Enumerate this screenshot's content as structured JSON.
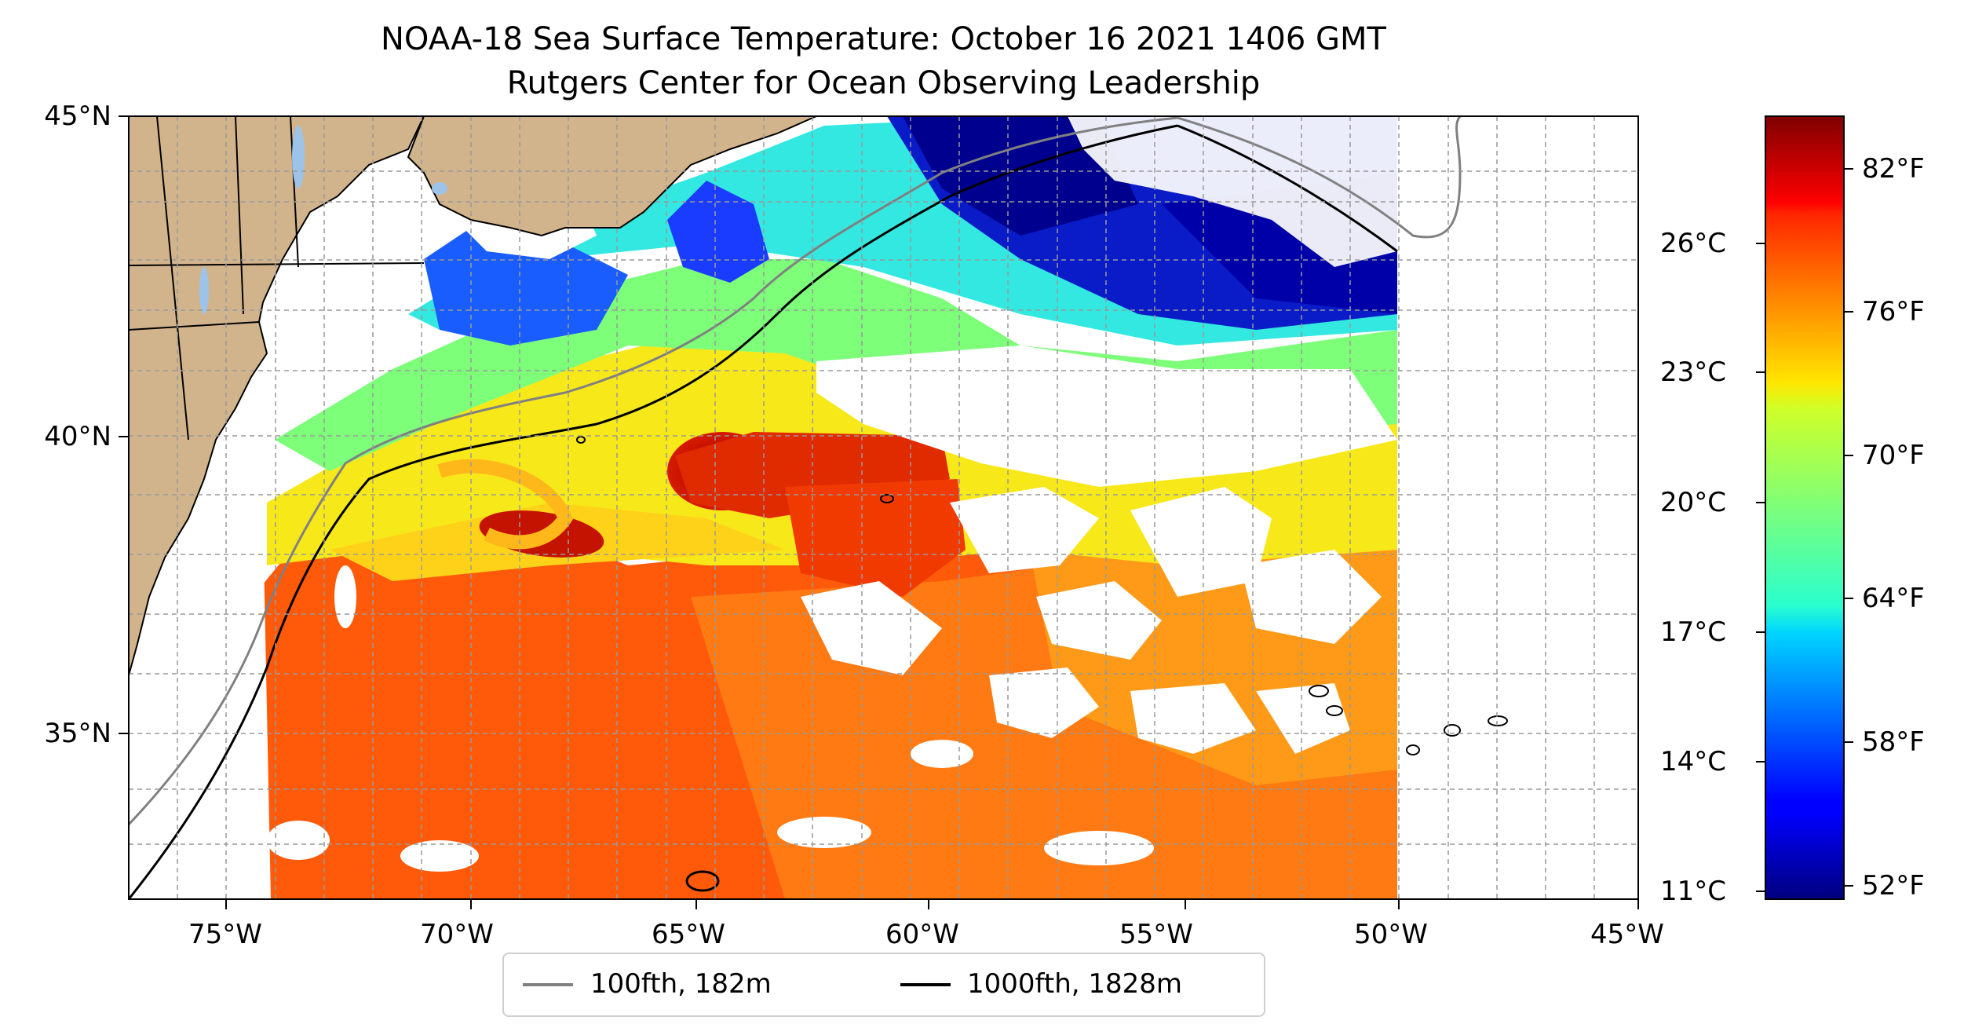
{
  "title": {
    "line1": "NOAA-18 Sea Surface Temperature: October 16 2021 1406 GMT",
    "line2": "Rutgers Center for Ocean Observing Leadership"
  },
  "map": {
    "lon_ticks": [
      "75°W",
      "70°W",
      "65°W",
      "60°W",
      "55°W",
      "50°W",
      "45°W"
    ],
    "lat_ticks": [
      "45°N",
      "40°N",
      "35°N"
    ],
    "extent": {
      "lon_min": -77,
      "lon_max": -45,
      "lat_min": 32.2,
      "lat_max": 45
    },
    "land_color": "#d2b48c",
    "lake_color": "#9ec3e8",
    "grid": "dashed"
  },
  "colorbar": {
    "celsius_labels": [
      "26°C",
      "23°C",
      "20°C",
      "17°C",
      "14°C",
      "11°C"
    ],
    "fahrenheit_labels": [
      "82°F",
      "76°F",
      "70°F",
      "64°F",
      "58°F",
      "52°F"
    ],
    "colormap": "jet"
  },
  "legend": {
    "items": [
      {
        "label": "100fth, 182m",
        "color": "#808080"
      },
      {
        "label": "1000fth, 1828m",
        "color": "#000000"
      }
    ]
  }
}
